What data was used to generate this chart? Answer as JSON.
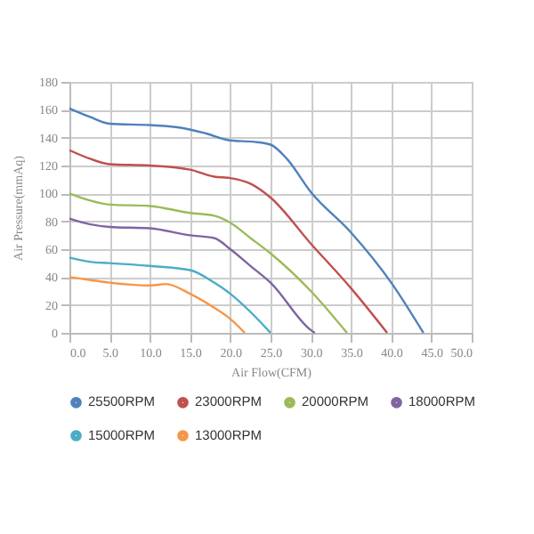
{
  "chart_data": {
    "type": "line",
    "xlabel": "Air Flow(CFM)",
    "ylabel": "Air Pressure(mmAq)",
    "xlim": [
      0,
      50
    ],
    "ylim": [
      0,
      180
    ],
    "xticks": [
      {
        "value": 0,
        "label": "0.0"
      },
      {
        "value": 5,
        "label": "5.0"
      },
      {
        "value": 10,
        "label": "10.0"
      },
      {
        "value": 15,
        "label": "15.0"
      },
      {
        "value": 20,
        "label": "20.0"
      },
      {
        "value": 25,
        "label": "25.0"
      },
      {
        "value": 30,
        "label": "30.0"
      },
      {
        "value": 35,
        "label": "35.0"
      },
      {
        "value": 40,
        "label": "40.0"
      },
      {
        "value": 45,
        "label": "45.0"
      },
      {
        "value": 50,
        "label": "50.0"
      }
    ],
    "yticks": [
      0,
      20,
      40,
      60,
      80,
      100,
      120,
      140,
      160,
      180
    ],
    "grid": true,
    "legend": "bottom",
    "series": [
      {
        "name": "25500RPM",
        "color": "#4f81bd",
        "x": [
          0,
          2.5,
          5,
          10,
          14,
          17,
          20,
          23,
          25,
          27,
          30,
          35,
          40,
          44
        ],
        "values": [
          161,
          155,
          150,
          149,
          147,
          143,
          138,
          137,
          135,
          125,
          101,
          72,
          36,
          0
        ]
      },
      {
        "name": "23000RPM",
        "color": "#c0504d",
        "x": [
          0,
          2.5,
          5,
          10,
          15,
          18,
          20,
          22.5,
          25,
          30,
          35,
          39.5
        ],
        "values": [
          131,
          125,
          121,
          120,
          117,
          112,
          111,
          107,
          97,
          64,
          32,
          0
        ]
      },
      {
        "name": "20000RPM",
        "color": "#9bbb59",
        "x": [
          0,
          2.5,
          5,
          10,
          15,
          18,
          20,
          22.5,
          25,
          30,
          34.5
        ],
        "values": [
          100,
          95,
          92,
          91,
          86,
          84,
          79,
          68,
          57,
          30,
          0
        ]
      },
      {
        "name": "18000RPM",
        "color": "#8064a2",
        "x": [
          0,
          2.5,
          5,
          10,
          15,
          18,
          20,
          22.5,
          25,
          30,
          30.5
        ],
        "values": [
          82,
          78,
          76,
          75,
          70,
          68,
          60,
          48,
          36,
          2,
          0
        ]
      },
      {
        "name": "15000RPM",
        "color": "#4bacc6",
        "x": [
          0,
          2.5,
          5,
          10,
          15,
          18,
          20,
          22.5,
          25
        ],
        "values": [
          54,
          51,
          50,
          48,
          45,
          36,
          28,
          15,
          0
        ]
      },
      {
        "name": "13000RPM",
        "color": "#f79646",
        "x": [
          0,
          2.5,
          5,
          10,
          12,
          15,
          18,
          20,
          21.8
        ],
        "values": [
          40,
          38,
          36,
          34,
          35,
          28,
          18,
          10,
          0
        ]
      }
    ]
  }
}
